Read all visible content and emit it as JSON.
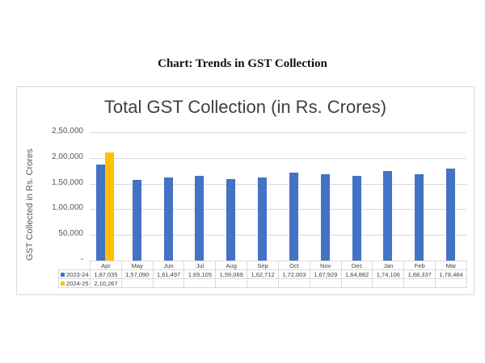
{
  "caption": "Chart: Trends in GST Collection",
  "colors": {
    "series_2023_24": "#4472C4",
    "series_2024_25": "#FFC000",
    "gridline": "#D9D9D9",
    "title_text": "#404040"
  },
  "chart_data": {
    "type": "bar",
    "title": "Total GST Collection (in Rs. Crores)",
    "xlabel": "",
    "ylabel": "GST Collected in Rs. Crores",
    "ylim": [
      0,
      250000
    ],
    "y_ticks": [
      "-",
      "50,000",
      "1,00,000",
      "1,50,000",
      "2,00,000",
      "2,50,000"
    ],
    "grid": true,
    "legend_position": "data-table",
    "categories": [
      "Apr",
      "May",
      "Jun",
      "Jul",
      "Aug",
      "Sep",
      "Oct",
      "Nov",
      "Dec",
      "Jan",
      "Feb",
      "Mar"
    ],
    "series": [
      {
        "name": "2023-24",
        "color": "#4472C4",
        "values": [
          187035,
          157090,
          161497,
          165105,
          159069,
          162712,
          172003,
          167929,
          164882,
          174106,
          168337,
          178484
        ],
        "labels": [
          "1,87,035",
          "1,57,090",
          "1,61,497",
          "1,65,105",
          "1,59,069",
          "1,62,712",
          "1,72,003",
          "1,67,929",
          "1,64,882",
          "1,74,106",
          "1,68,337",
          "1,78,484"
        ]
      },
      {
        "name": "2024-25",
        "color": "#FFC000",
        "values": [
          210267,
          null,
          null,
          null,
          null,
          null,
          null,
          null,
          null,
          null,
          null,
          null
        ],
        "labels": [
          "2,10,267",
          "",
          "",
          "",
          "",
          "",
          "",
          "",
          "",
          "",
          "",
          ""
        ]
      }
    ]
  }
}
